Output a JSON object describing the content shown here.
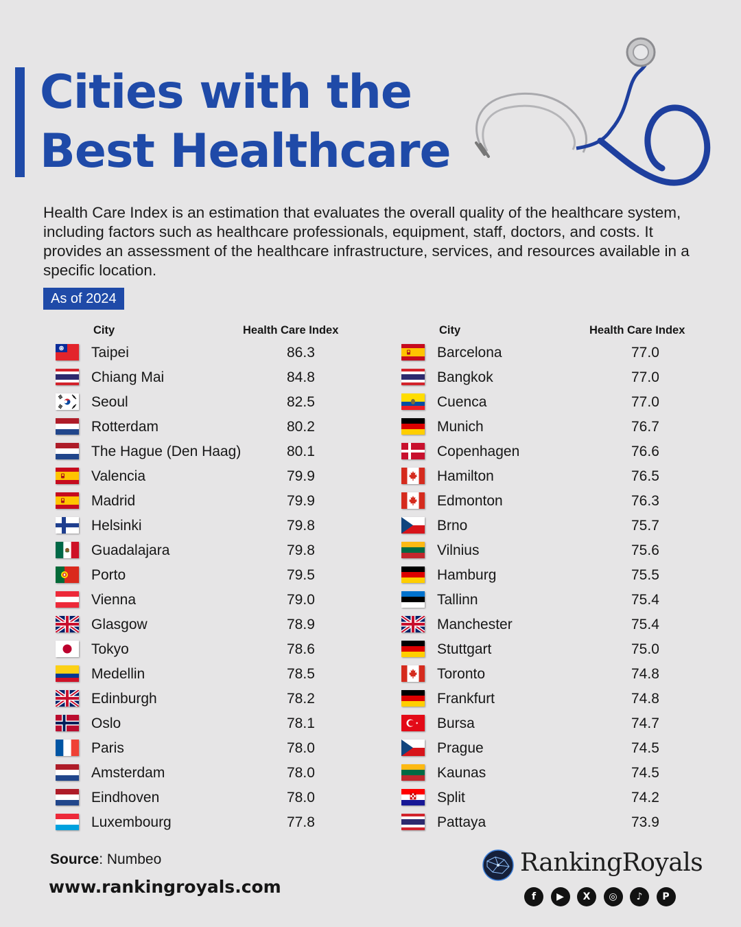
{
  "title": {
    "line1": "Cities with the",
    "line2": "Best Healthcare"
  },
  "description": "Health Care Index is an estimation that evaluates the overall quality of the healthcare system, including factors such as healthcare professionals, equipment, staff, doctors, and costs. It provides an assessment of the healthcare infrastructure, services, and resources available in a specific location.",
  "badge": "As of 2024",
  "columns": {
    "city": "City",
    "index": "Health Care Index"
  },
  "left_rows": [
    {
      "flag": "taiwan",
      "city": "Taipei",
      "value": "86.3"
    },
    {
      "flag": "thailand",
      "city": "Chiang Mai",
      "value": "84.8"
    },
    {
      "flag": "south-korea",
      "city": "Seoul",
      "value": "82.5"
    },
    {
      "flag": "netherlands",
      "city": "Rotterdam",
      "value": "80.2"
    },
    {
      "flag": "netherlands",
      "city": "The Hague (Den Haag)",
      "value": "80.1"
    },
    {
      "flag": "spain",
      "city": "Valencia",
      "value": "79.9"
    },
    {
      "flag": "spain",
      "city": "Madrid",
      "value": "79.9"
    },
    {
      "flag": "finland",
      "city": "Helsinki",
      "value": "79.8"
    },
    {
      "flag": "mexico",
      "city": "Guadalajara",
      "value": "79.8"
    },
    {
      "flag": "portugal",
      "city": "Porto",
      "value": "79.5"
    },
    {
      "flag": "austria",
      "city": "Vienna",
      "value": "79.0"
    },
    {
      "flag": "united-kingdom",
      "city": "Glasgow",
      "value": "78.9"
    },
    {
      "flag": "japan",
      "city": "Tokyo",
      "value": "78.6"
    },
    {
      "flag": "colombia",
      "city": "Medellin",
      "value": "78.5"
    },
    {
      "flag": "united-kingdom",
      "city": "Edinburgh",
      "value": "78.2"
    },
    {
      "flag": "norway",
      "city": "Oslo",
      "value": "78.1"
    },
    {
      "flag": "france",
      "city": "Paris",
      "value": "78.0"
    },
    {
      "flag": "netherlands",
      "city": "Amsterdam",
      "value": "78.0"
    },
    {
      "flag": "netherlands",
      "city": "Eindhoven",
      "value": "78.0"
    },
    {
      "flag": "luxembourg",
      "city": "Luxembourg",
      "value": "77.8"
    }
  ],
  "right_rows": [
    {
      "flag": "spain",
      "city": "Barcelona",
      "value": "77.0"
    },
    {
      "flag": "thailand",
      "city": "Bangkok",
      "value": "77.0"
    },
    {
      "flag": "ecuador",
      "city": "Cuenca",
      "value": "77.0"
    },
    {
      "flag": "germany",
      "city": "Munich",
      "value": "76.7"
    },
    {
      "flag": "denmark",
      "city": "Copenhagen",
      "value": "76.6"
    },
    {
      "flag": "canada",
      "city": "Hamilton",
      "value": "76.5"
    },
    {
      "flag": "canada",
      "city": "Edmonton",
      "value": "76.3"
    },
    {
      "flag": "czechia",
      "city": "Brno",
      "value": "75.7"
    },
    {
      "flag": "lithuania",
      "city": "Vilnius",
      "value": "75.6"
    },
    {
      "flag": "germany",
      "city": "Hamburg",
      "value": "75.5"
    },
    {
      "flag": "estonia",
      "city": "Tallinn",
      "value": "75.4"
    },
    {
      "flag": "united-kingdom",
      "city": "Manchester",
      "value": "75.4"
    },
    {
      "flag": "germany",
      "city": "Stuttgart",
      "value": "75.0"
    },
    {
      "flag": "canada",
      "city": "Toronto",
      "value": "74.8"
    },
    {
      "flag": "germany",
      "city": "Frankfurt",
      "value": "74.8"
    },
    {
      "flag": "turkey",
      "city": "Bursa",
      "value": "74.7"
    },
    {
      "flag": "czechia",
      "city": "Prague",
      "value": "74.5"
    },
    {
      "flag": "lithuania",
      "city": "Kaunas",
      "value": "74.5"
    },
    {
      "flag": "croatia",
      "city": "Split",
      "value": "74.2"
    },
    {
      "flag": "thailand",
      "city": "Pattaya",
      "value": "73.9"
    }
  ],
  "footer": {
    "source_label": "Source",
    "source_value": ": Numbeo",
    "website": "www.rankingroyals.com",
    "brand": "RankingRoyals",
    "socials": [
      {
        "icon": "facebook-icon",
        "glyph": "f"
      },
      {
        "icon": "youtube-icon",
        "glyph": "▶"
      },
      {
        "icon": "x-icon",
        "glyph": "X"
      },
      {
        "icon": "instagram-icon",
        "glyph": "◎"
      },
      {
        "icon": "tiktok-icon",
        "glyph": "♪"
      },
      {
        "icon": "pinterest-icon",
        "glyph": "P"
      }
    ]
  },
  "colors": {
    "accent": "#1f4aa8",
    "background": "#e6e5e6",
    "text": "#161616"
  }
}
